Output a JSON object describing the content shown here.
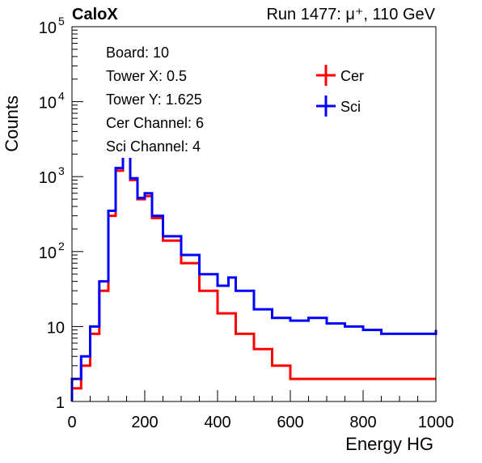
{
  "chart_data": {
    "type": "line",
    "title_left": "CaloX",
    "title_right": "Run 1477:   μ⁺, 110 GeV",
    "xlabel": "Energy HG",
    "ylabel": "Counts",
    "xlim": [
      0,
      1000
    ],
    "ylim": [
      1,
      100000
    ],
    "yscale": "log",
    "x_ticks": [
      "0",
      "200",
      "400",
      "600",
      "800",
      "1000"
    ],
    "y_ticks": [
      {
        "value": 1,
        "base": "1",
        "exp": ""
      },
      {
        "value": 10,
        "base": "10",
        "exp": ""
      },
      {
        "value": 100,
        "base": "10",
        "exp": "2"
      },
      {
        "value": 1000,
        "base": "10",
        "exp": "3"
      },
      {
        "value": 10000,
        "base": "10",
        "exp": "4"
      },
      {
        "value": 100000,
        "base": "10",
        "exp": "5"
      }
    ],
    "info_lines": [
      "Board: 10",
      "Tower X: 0.5",
      "Tower Y: 1.625",
      "Cer Channel: 6",
      "Sci Channel: 4"
    ],
    "legend_position": "top-right",
    "series": [
      {
        "name": "Cer",
        "color": "#ff0000",
        "x": [
          0,
          25,
          50,
          75,
          100,
          120,
          140,
          160,
          180,
          200,
          220,
          250,
          300,
          350,
          400,
          450,
          500,
          550,
          600,
          650,
          700,
          750,
          800,
          900,
          1000
        ],
        "y": [
          1.5,
          3,
          8,
          30,
          300,
          1200,
          2200,
          900,
          500,
          550,
          280,
          140,
          70,
          30,
          15,
          8,
          5,
          3,
          2,
          2,
          2,
          2,
          2,
          2,
          2
        ]
      },
      {
        "name": "Sci",
        "color": "#0000ff",
        "x": [
          0,
          25,
          50,
          75,
          100,
          120,
          140,
          160,
          180,
          200,
          220,
          250,
          300,
          350,
          400,
          430,
          450,
          500,
          550,
          600,
          650,
          700,
          750,
          800,
          850,
          900,
          950,
          1000
        ],
        "y": [
          2,
          4,
          10,
          40,
          350,
          1300,
          2300,
          950,
          520,
          600,
          300,
          160,
          90,
          50,
          35,
          45,
          30,
          17,
          13,
          12,
          13,
          11,
          10,
          9,
          8,
          8,
          8,
          9
        ]
      }
    ]
  }
}
